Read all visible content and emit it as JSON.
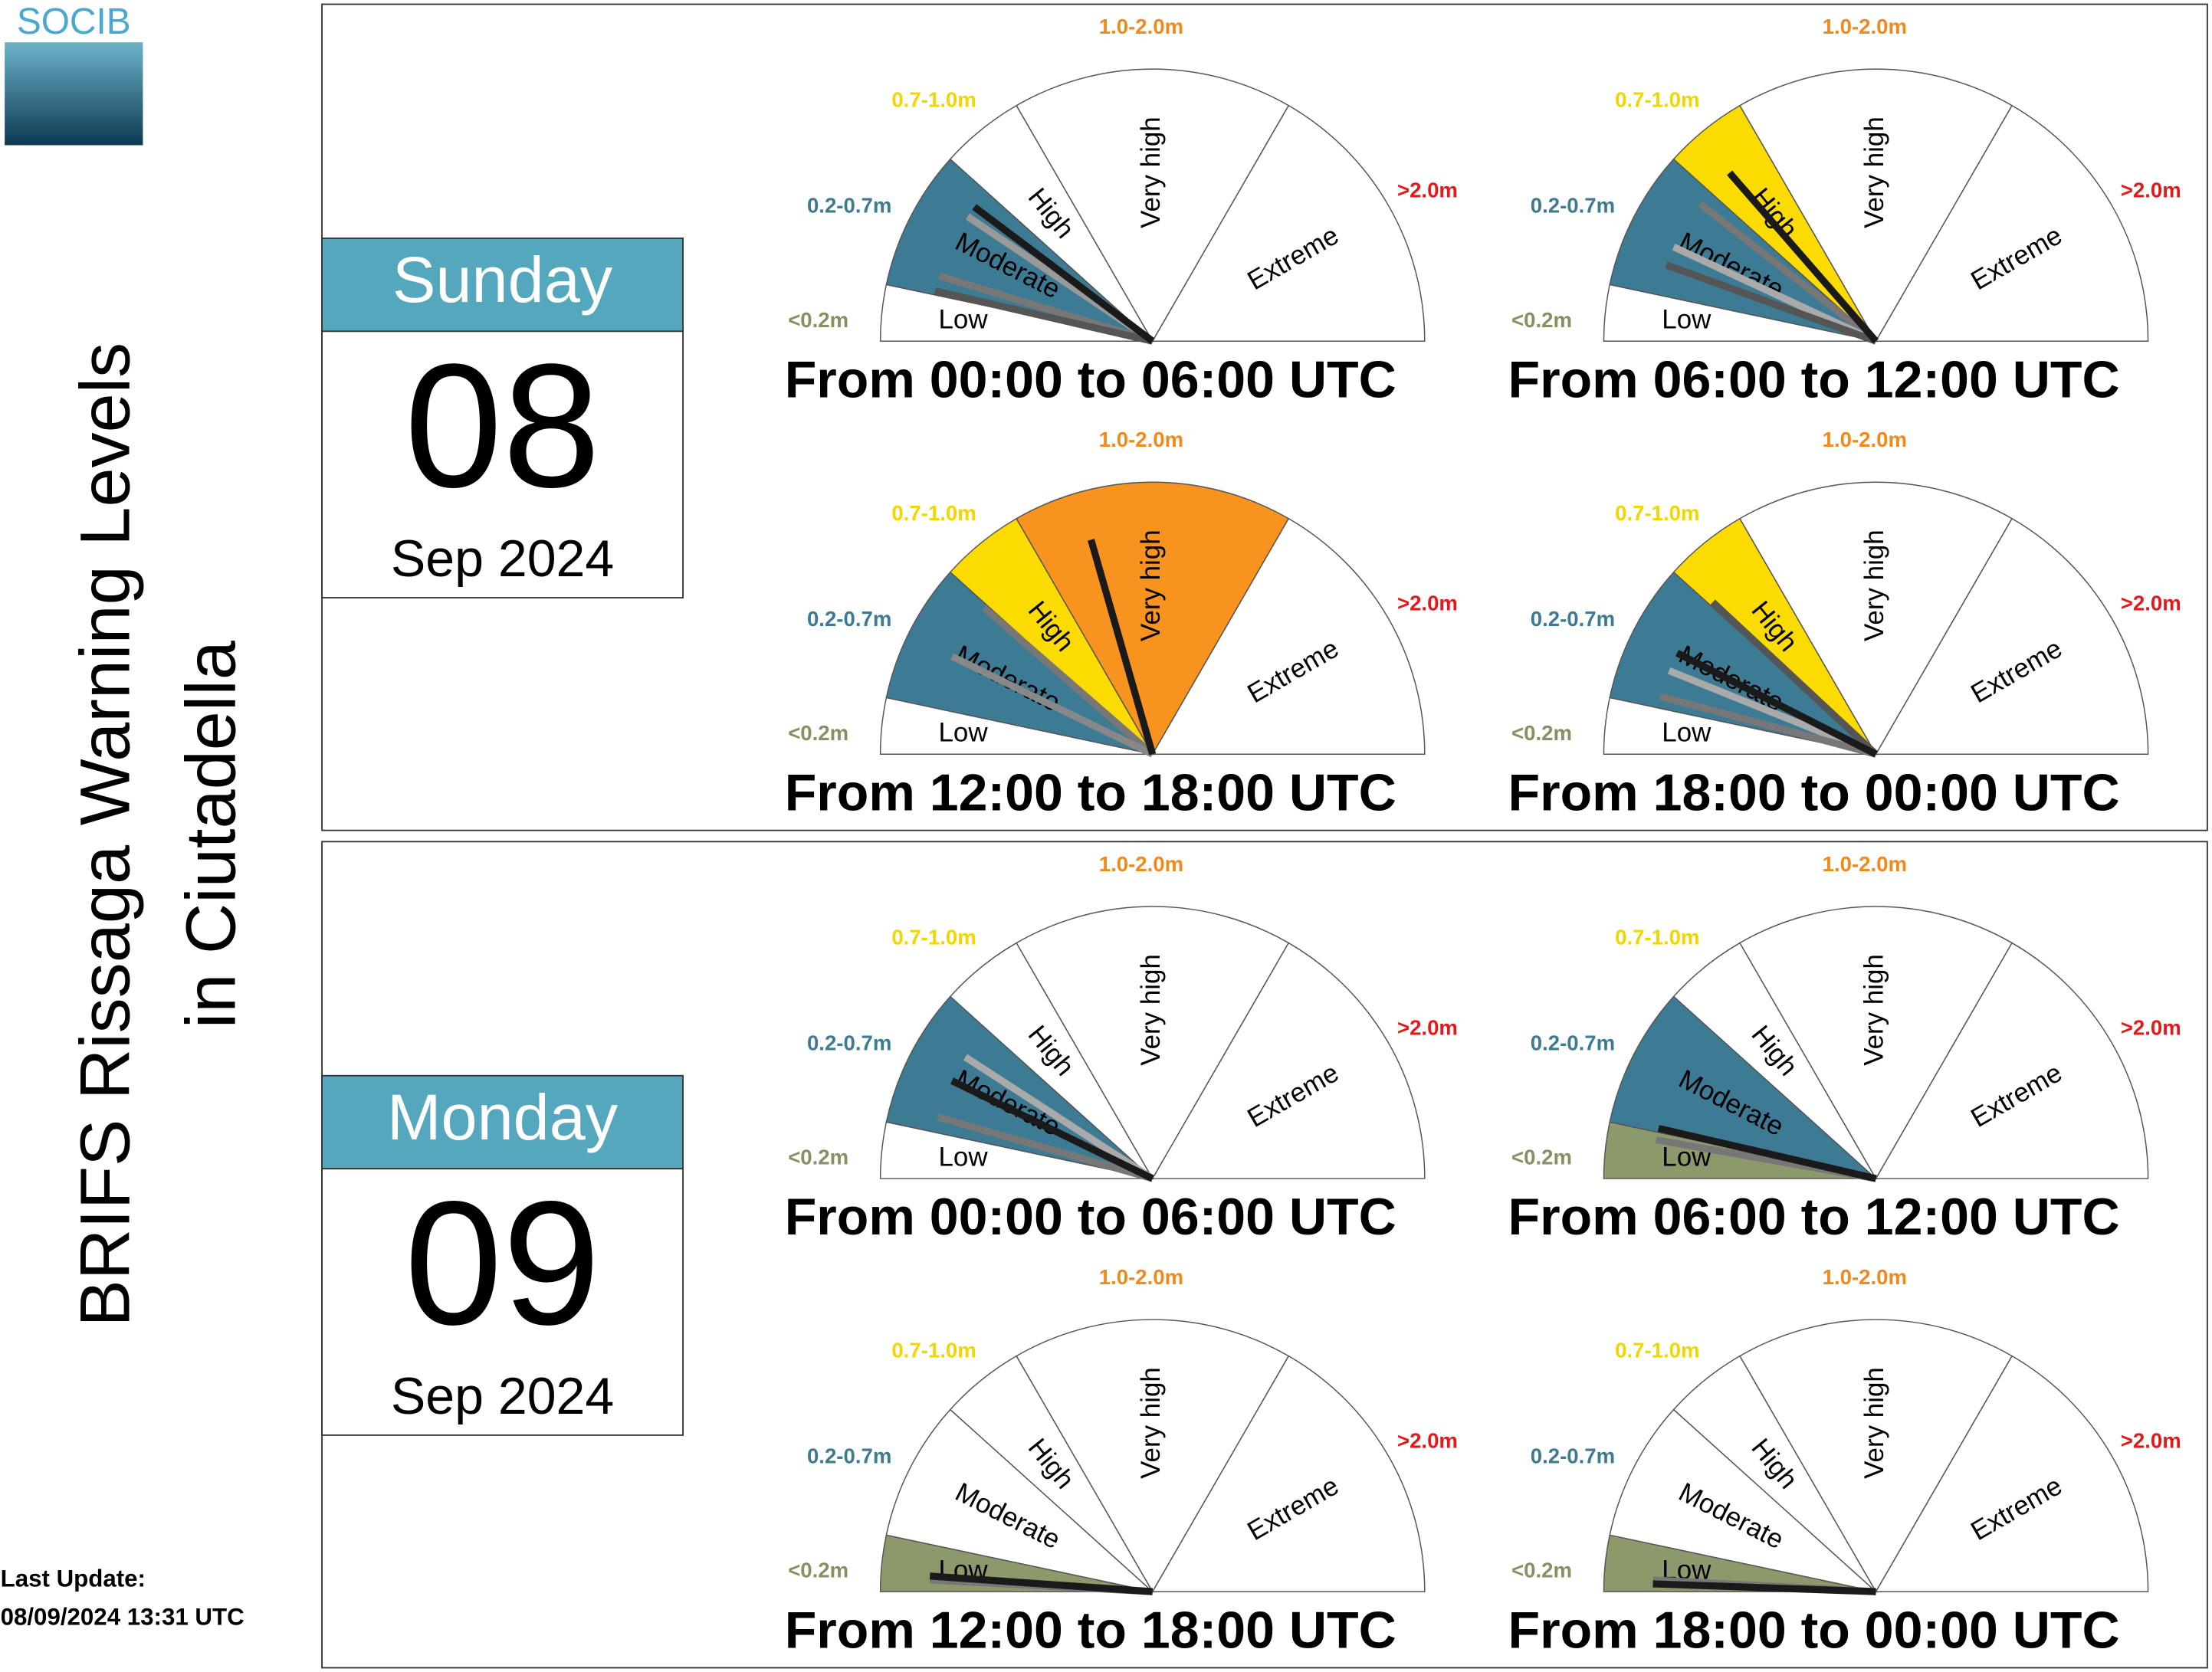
{
  "logo": "SOCIB",
  "title_line1": "BRIFS Rissaga Warning Levels",
  "title_line2": "in Ciutadella",
  "last_update_label": "Last Update:",
  "last_update": "08/09/2024 13:31 UTC",
  "levels": [
    {
      "name": "Low",
      "range": "<0.2m",
      "range_color": "#8a8f63",
      "fill": "#8c9a6b"
    },
    {
      "name": "Moderate",
      "range": "0.2-0.7m",
      "range_color": "#3d7a93",
      "fill": "#3d7a93"
    },
    {
      "name": "High",
      "range": "0.7-1.0m",
      "range_color": "#f2d600",
      "fill": "#fcdc00"
    },
    {
      "name": "Very high",
      "range": "1.0-2.0m",
      "range_color": "#f08a1c",
      "fill": "#f7931e"
    },
    {
      "name": "Extreme",
      "range": ">2.0m",
      "range_color": "#e31a1c",
      "fill": "#e31a1c"
    }
  ],
  "days": [
    {
      "weekday": "Sunday",
      "day": "08",
      "month_year": "Sep 2024",
      "gauges": [
        {
          "period": "From 00:00 to 06:00 UTC",
          "filled": [
            false,
            true,
            false,
            false,
            false
          ],
          "needles": [
            {
              "angle": 146,
              "color": "#999999"
            },
            {
              "angle": 163,
              "color": "#777777"
            },
            {
              "angle": 167,
              "color": "#555555"
            },
            {
              "angle": 143,
              "color": "#1a1a1a"
            }
          ]
        },
        {
          "period": "From 06:00 to 12:00 UTC",
          "filled": [
            false,
            true,
            true,
            false,
            false
          ],
          "needles": [
            {
              "angle": 142,
              "color": "#777777"
            },
            {
              "angle": 155,
              "color": "#aaaaaa"
            },
            {
              "angle": 160,
              "color": "#555555"
            },
            {
              "angle": 131,
              "color": "#1a1a1a"
            }
          ]
        },
        {
          "period": "From 12:00 to 18:00 UTC",
          "filled": [
            false,
            true,
            true,
            true,
            false
          ],
          "needles": [
            {
              "angle": 139,
              "color": "#777777"
            },
            {
              "angle": 154,
              "color": "#888888"
            },
            {
              "angle": 106,
              "color": "#1a1a1a"
            }
          ]
        },
        {
          "period": "From 18:00 to 00:00 UTC",
          "filled": [
            false,
            true,
            true,
            false,
            false
          ],
          "needles": [
            {
              "angle": 137,
              "color": "#555555"
            },
            {
              "angle": 158,
              "color": "#aaaaaa"
            },
            {
              "angle": 165,
              "color": "#777777"
            },
            {
              "angle": 153,
              "color": "#1a1a1a"
            }
          ]
        }
      ]
    },
    {
      "weekday": "Monday",
      "day": "09",
      "month_year": "Sep 2024",
      "gauges": [
        {
          "period": "From 00:00 to 06:00 UTC",
          "filled": [
            false,
            true,
            false,
            false,
            false
          ],
          "needles": [
            {
              "angle": 147,
              "color": "#aaaaaa"
            },
            {
              "angle": 164,
              "color": "#777777"
            },
            {
              "angle": 154,
              "color": "#1a1a1a"
            }
          ]
        },
        {
          "period": "From 06:00 to 12:00 UTC",
          "filled": [
            true,
            true,
            false,
            false,
            false
          ],
          "needles": [
            {
              "angle": 170,
              "color": "#777777"
            },
            {
              "angle": 167,
              "color": "#1a1a1a"
            }
          ]
        },
        {
          "period": "From 12:00 to 18:00 UTC",
          "filled": [
            true,
            false,
            false,
            false,
            false
          ],
          "needles": [
            {
              "angle": 177,
              "color": "#777777"
            },
            {
              "angle": 176,
              "color": "#1a1a1a"
            }
          ]
        },
        {
          "period": "From 18:00 to 00:00 UTC",
          "filled": [
            true,
            false,
            false,
            false,
            false
          ],
          "needles": [
            {
              "angle": 177,
              "color": "#777777"
            },
            {
              "angle": 178,
              "color": "#1a1a1a"
            }
          ]
        }
      ]
    }
  ]
}
